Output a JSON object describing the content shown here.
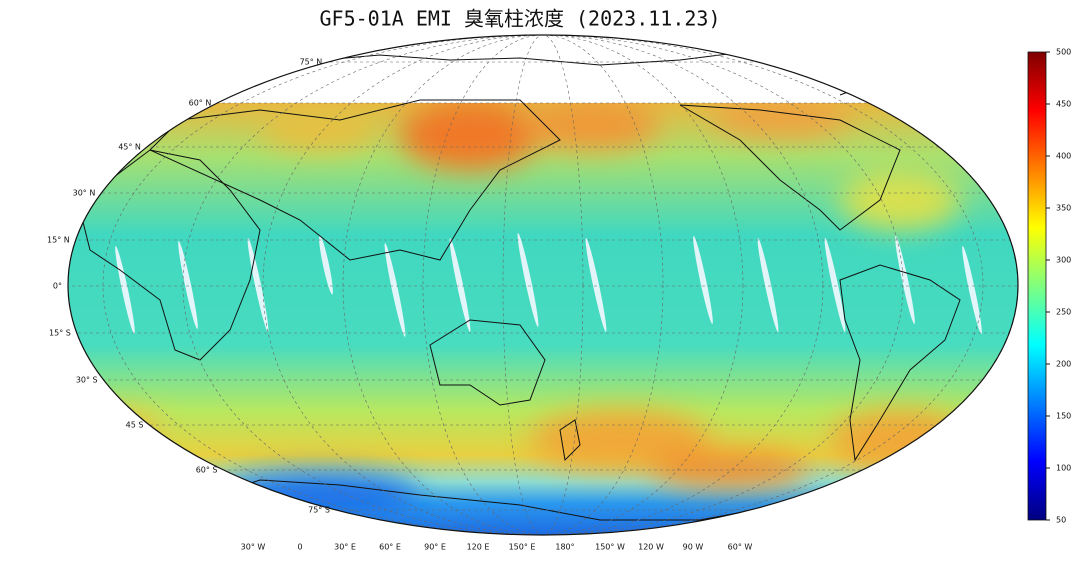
{
  "title": "GF5-01A EMI 臭氧柱浓度 (2023.11.23)",
  "latitude_labels": [
    "75° N",
    "60° N",
    "45° N",
    "30° N",
    "15° N",
    "0°",
    "15° S",
    "30° S",
    "45 S",
    "60° S",
    "75° S"
  ],
  "longitude_labels": [
    "30° W",
    "0",
    "30° E",
    "60° E",
    "90° E",
    "120 E",
    "150° E",
    "180°",
    "150° W",
    "120 W",
    "90 W",
    "60° W"
  ],
  "colorbar": {
    "range": [
      50,
      500
    ],
    "ticks": [
      50,
      100,
      150,
      200,
      250,
      300,
      350,
      400,
      450,
      500
    ],
    "colors": [
      "#00007f",
      "#0000ff",
      "#007fff",
      "#00ffff",
      "#7fff7f",
      "#ffff00",
      "#ff7f00",
      "#ff0000",
      "#7f0000"
    ]
  }
}
